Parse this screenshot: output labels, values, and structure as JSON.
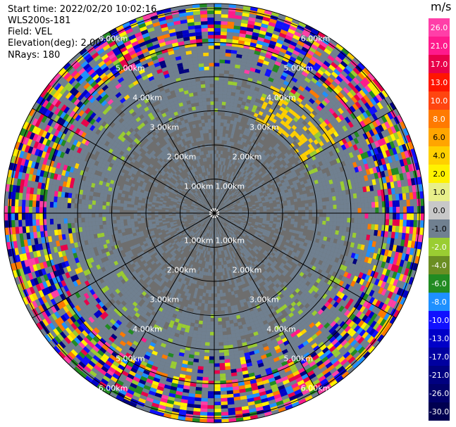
{
  "header": {
    "start_time": "Start time: 2022/02/20 10:02:16",
    "instrument": "WLS200s-181",
    "field": "Field: VEL",
    "elevation": "Elevation(deg): 2.00",
    "nrays": "NRays: 180"
  },
  "ring_labels": [
    "1.00km",
    "2.00km",
    "3.00km",
    "4.00km",
    "5.00km",
    "6.00km"
  ],
  "colorbar": {
    "unit": "m/s",
    "ticks": [
      "26.0",
      "21.0",
      "17.0",
      "13.0",
      "10.0",
      "8.0",
      "6.0",
      "4.0",
      "2.0",
      "1.0",
      "0.0",
      "-1.0",
      "-2.0",
      "-4.0",
      "-6.0",
      "-8.0",
      "-10.0",
      "-13.0",
      "-17.0",
      "-21.0",
      "-26.0",
      "-30.0"
    ],
    "colors": [
      "#ff3fa8",
      "#ff1a8c",
      "#e8004a",
      "#ff1500",
      "#ff4510",
      "#ff7a00",
      "#ffa500",
      "#ffd000",
      "#fff200",
      "#e8ef8a",
      "#c8c8c8",
      "#708090",
      "#9acd32",
      "#6b8e23",
      "#228b22",
      "#1e90ff",
      "#1010ff",
      "#0000c8",
      "#0000a0",
      "#000080",
      "#00006a",
      "#000050"
    ]
  }
}
